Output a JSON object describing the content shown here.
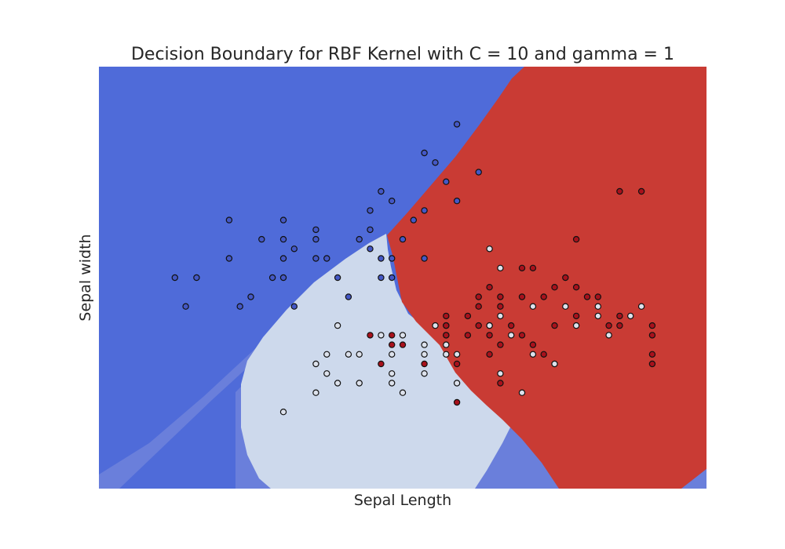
{
  "chart_data": {
    "type": "scatter",
    "title": "Decision Boundary for RBF Kernel with C = 10 and gamma = 1",
    "xlabel": "Sepal Length",
    "ylabel": "Sepal width",
    "xlim": [
      3.3,
      8.9
    ],
    "ylim": [
      0.6,
      5.0
    ],
    "grid": false,
    "colors": {
      "class_0": "#4f6bd9",
      "class_1": "#cdd9ec",
      "class_2": "#c93b34",
      "blend_blue": "#6a7fdb",
      "point_0": "#4458c6",
      "point_1": "#dde2ec",
      "point_2": "#a8111c",
      "edge": "#111111"
    },
    "series": [
      {
        "class": 0,
        "points": [
          [
            6.6,
            4.4
          ],
          [
            6.3,
            4.1
          ],
          [
            6.4,
            4.0
          ],
          [
            6.8,
            3.9
          ],
          [
            6.5,
            3.8
          ],
          [
            6.0,
            3.6
          ],
          [
            6.6,
            3.6
          ],
          [
            5.9,
            3.7
          ],
          [
            5.8,
            3.5
          ],
          [
            6.3,
            3.5
          ],
          [
            6.2,
            3.4
          ],
          [
            4.5,
            3.4
          ],
          [
            5.0,
            3.4
          ],
          [
            5.8,
            3.3
          ],
          [
            6.1,
            3.2
          ],
          [
            4.8,
            3.2
          ],
          [
            5.0,
            3.2
          ],
          [
            5.1,
            3.1
          ],
          [
            5.8,
            3.1
          ],
          [
            6.0,
            3.0
          ],
          [
            6.3,
            3.0
          ],
          [
            5.9,
            3.0
          ],
          [
            4.5,
            3.0
          ],
          [
            5.0,
            3.0
          ],
          [
            5.3,
            3.0
          ],
          [
            5.4,
            3.0
          ],
          [
            6.0,
            2.8
          ],
          [
            5.5,
            2.8
          ],
          [
            4.0,
            2.8
          ],
          [
            4.2,
            2.8
          ],
          [
            4.9,
            2.8
          ],
          [
            5.6,
            2.6
          ],
          [
            4.7,
            2.6
          ],
          [
            4.6,
            2.5
          ],
          [
            5.1,
            2.5
          ],
          [
            4.1,
            2.5
          ],
          [
            5.7,
            3.2
          ],
          [
            5.0,
            2.8
          ],
          [
            5.9,
            2.8
          ],
          [
            5.3,
            3.2
          ],
          [
            5.3,
            3.3
          ]
        ]
      },
      {
        "class": 1,
        "points": [
          [
            6.9,
            3.1
          ],
          [
            7.9,
            2.5
          ],
          [
            7.3,
            2.5
          ],
          [
            7.6,
            2.5
          ],
          [
            7.0,
            2.9
          ],
          [
            7.7,
            2.3
          ],
          [
            8.2,
            2.4
          ],
          [
            7.9,
            2.4
          ],
          [
            8.3,
            2.5
          ],
          [
            5.9,
            2.2
          ],
          [
            6.1,
            2.2
          ],
          [
            5.5,
            2.3
          ],
          [
            6.5,
            2.2
          ],
          [
            7.0,
            2.4
          ],
          [
            6.5,
            2.3
          ],
          [
            6.9,
            2.3
          ],
          [
            7.1,
            2.2
          ],
          [
            8.0,
            2.2
          ],
          [
            6.9,
            2.3
          ],
          [
            6.5,
            2.1
          ],
          [
            6.5,
            2.0
          ],
          [
            5.3,
            1.9
          ],
          [
            5.7,
            2.0
          ],
          [
            5.6,
            2.0
          ],
          [
            7.3,
            2.0
          ],
          [
            6.0,
            2.0
          ],
          [
            6.3,
            2.0
          ],
          [
            7.0,
            1.8
          ],
          [
            7.5,
            1.9
          ],
          [
            6.0,
            1.8
          ],
          [
            6.3,
            1.8
          ],
          [
            5.7,
            1.7
          ],
          [
            6.0,
            1.7
          ],
          [
            6.6,
            1.7
          ],
          [
            5.5,
            1.7
          ],
          [
            7.2,
            1.6
          ],
          [
            5.4,
            1.8
          ],
          [
            5.0,
            1.4
          ],
          [
            5.4,
            2.0
          ],
          [
            6.6,
            2.0
          ],
          [
            6.4,
            2.3
          ],
          [
            6.3,
            2.1
          ],
          [
            5.3,
            1.6
          ],
          [
            6.1,
            1.6
          ]
        ]
      },
      {
        "class": 2,
        "points": [
          [
            8.1,
            3.7
          ],
          [
            8.3,
            3.7
          ],
          [
            7.7,
            3.2
          ],
          [
            7.2,
            2.9
          ],
          [
            7.3,
            2.9
          ],
          [
            7.6,
            2.8
          ],
          [
            7.5,
            2.7
          ],
          [
            7.7,
            2.7
          ],
          [
            7.8,
            2.6
          ],
          [
            7.2,
            2.6
          ],
          [
            7.4,
            2.6
          ],
          [
            7.9,
            2.6
          ],
          [
            6.9,
            2.7
          ],
          [
            7.0,
            2.5
          ],
          [
            6.5,
            2.4
          ],
          [
            6.7,
            2.4
          ],
          [
            6.8,
            2.5
          ],
          [
            6.8,
            2.6
          ],
          [
            7.0,
            2.6
          ],
          [
            7.5,
            2.3
          ],
          [
            7.7,
            2.4
          ],
          [
            8.0,
            2.3
          ],
          [
            8.1,
            2.4
          ],
          [
            8.4,
            2.3
          ],
          [
            8.4,
            2.2
          ],
          [
            6.9,
            2.2
          ],
          [
            7.0,
            2.1
          ],
          [
            7.2,
            2.2
          ],
          [
            7.3,
            2.1
          ],
          [
            6.5,
            2.3
          ],
          [
            6.7,
            2.2
          ],
          [
            7.1,
            2.3
          ],
          [
            6.9,
            2.0
          ],
          [
            7.4,
            2.0
          ],
          [
            6.6,
            1.9
          ],
          [
            8.4,
            2.0
          ],
          [
            8.1,
            2.3
          ],
          [
            5.8,
            2.2
          ],
          [
            6.0,
            2.2
          ],
          [
            6.1,
            2.1
          ],
          [
            7.0,
            1.7
          ],
          [
            6.6,
            1.5
          ],
          [
            5.9,
            1.9
          ],
          [
            6.3,
            1.9
          ],
          [
            6.0,
            2.1
          ],
          [
            6.8,
            2.3
          ],
          [
            6.5,
            2.2
          ],
          [
            8.4,
            1.9
          ]
        ]
      }
    ]
  }
}
